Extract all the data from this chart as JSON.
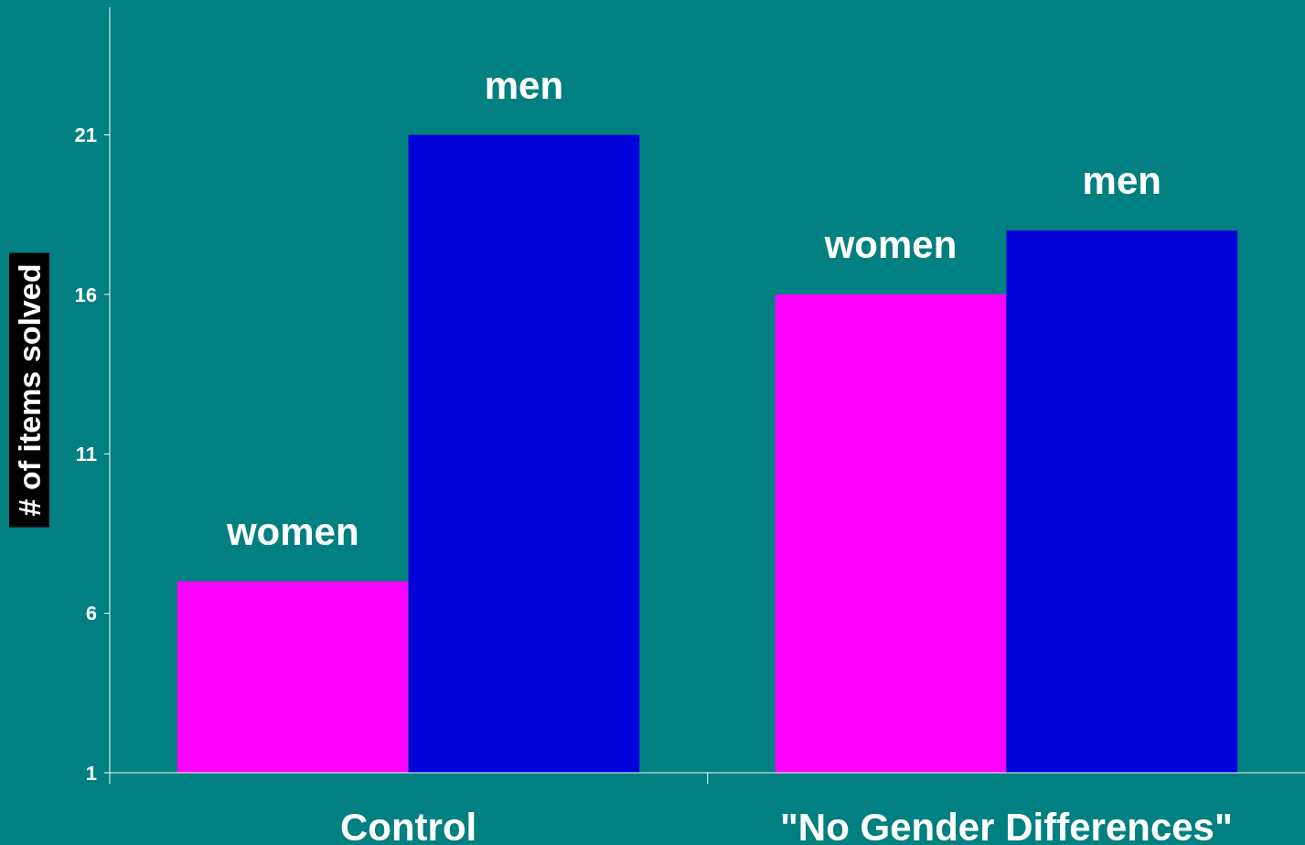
{
  "chart_data": {
    "type": "bar",
    "ylabel": "# of items solved",
    "categories": [
      "Control",
      "\"No Gender Differences\""
    ],
    "series": [
      {
        "name": "women",
        "color": "#ff00ff",
        "values": [
          7,
          16
        ]
      },
      {
        "name": "men",
        "color": "#0000d8",
        "values": [
          21,
          18
        ]
      }
    ],
    "ylim": [
      1,
      25
    ],
    "yticks": [
      1,
      6,
      11,
      16,
      21
    ]
  }
}
